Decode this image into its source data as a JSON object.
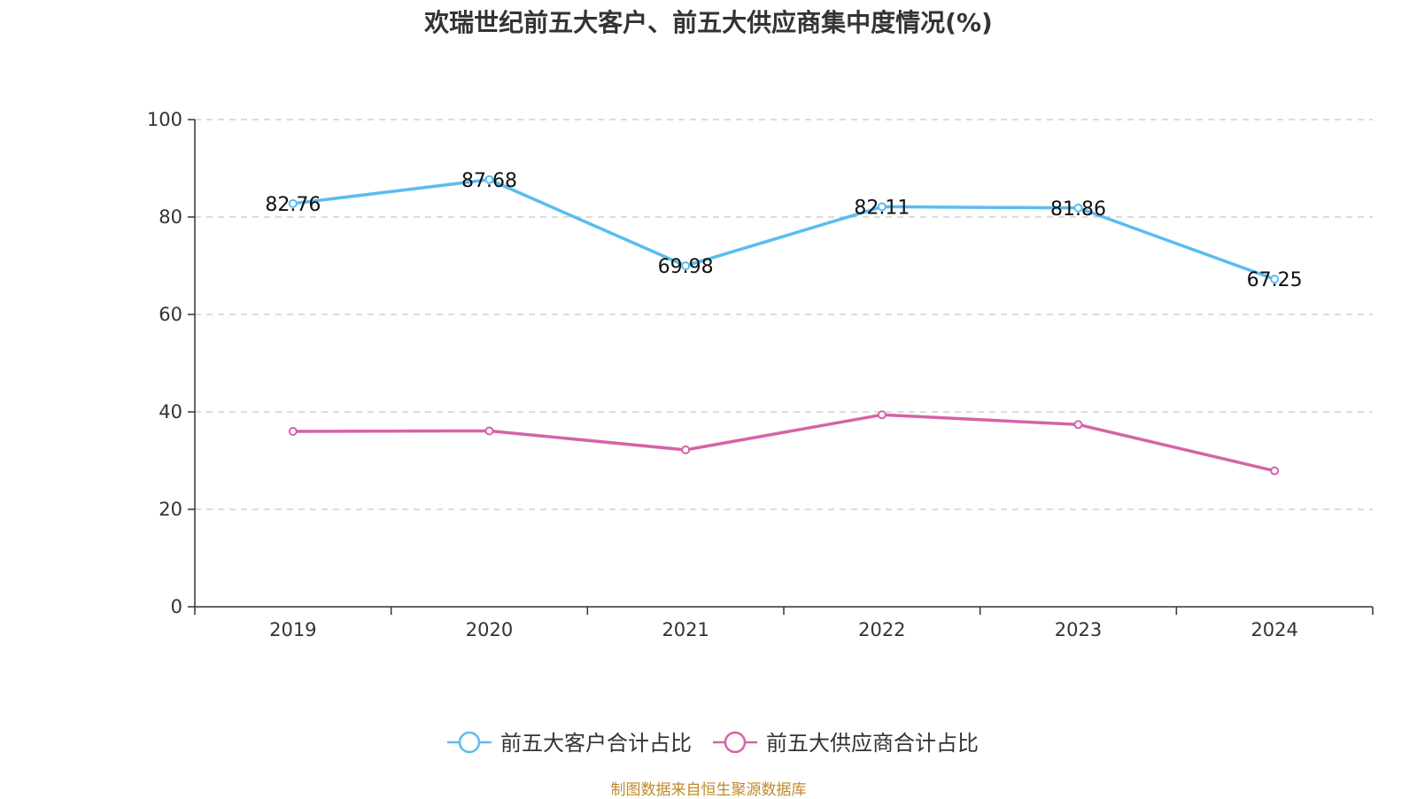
{
  "chart_data": {
    "type": "line",
    "title": "欢瑞世纪前五大客户、前五大供应商集中度情况(%)",
    "categories": [
      "2019",
      "2020",
      "2021",
      "2022",
      "2023",
      "2024"
    ],
    "ylim": [
      0,
      100
    ],
    "yticks": [
      0,
      20,
      40,
      60,
      80,
      100
    ],
    "grid": true,
    "legend_position": "bottom",
    "series": [
      {
        "name": "前五大客户合计占比",
        "color": "#5bbcef",
        "values": [
          82.76,
          87.68,
          69.98,
          82.11,
          81.86,
          67.25
        ],
        "labels": [
          "82.76",
          "87.68",
          "69.98",
          "82.11",
          "81.86",
          "67.25"
        ],
        "show_labels": true
      },
      {
        "name": "前五大供应商合计占比",
        "color": "#d563a8",
        "values": [
          36.0,
          36.1,
          32.2,
          39.4,
          37.4,
          27.9
        ],
        "show_labels": false
      }
    ]
  },
  "source_note": "制图数据来自恒生聚源数据库"
}
